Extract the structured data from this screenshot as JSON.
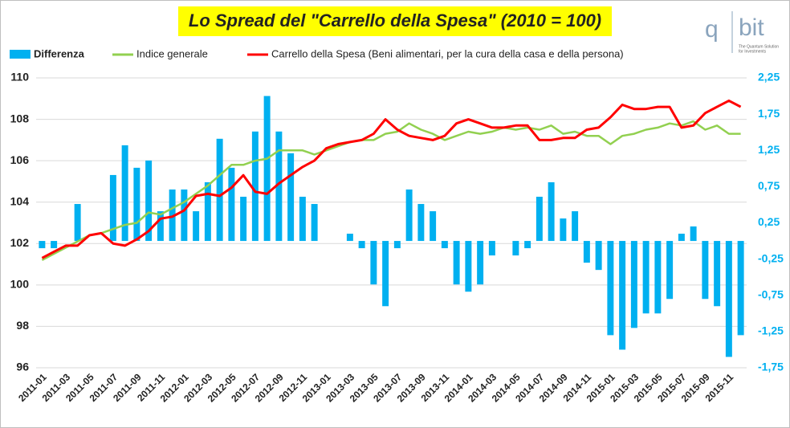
{
  "chart_data": {
    "type": "combo",
    "title": "Lo Spread del \"Carrello della Spesa\" (2010 = 100)",
    "annotations": [
      "q",
      "bit",
      "The Quantum Solution",
      "for Investments"
    ],
    "categories": [
      "2011-01",
      null,
      "2011-03",
      null,
      "2011-05",
      null,
      "2011-07",
      null,
      "2011-09",
      null,
      "2011-11",
      null,
      "2012-01",
      null,
      "2012-03",
      null,
      "2012-05",
      null,
      "2012-07",
      null,
      "2012-09",
      null,
      "2012-11",
      null,
      "2013-01",
      null,
      "2013-03",
      null,
      "2013-05",
      null,
      "2013-07",
      null,
      "2013-09",
      null,
      "2013-11",
      null,
      "2014-01",
      null,
      "2014-03",
      null,
      "2014-05",
      null,
      "2014-07",
      null,
      "2014-09",
      null,
      "2014-11",
      null,
      "2015-01",
      null,
      "2015-03",
      null,
      "2015-05",
      null,
      "2015-07",
      null,
      "2015-09",
      null,
      "2015-11",
      null
    ],
    "series": [
      {
        "name": "Differenza",
        "type": "bar",
        "axis": "y2",
        "color": "#00b0f0",
        "values": [
          -0.1,
          -0.1,
          0,
          0.51,
          0,
          0,
          0.91,
          1.32,
          1.01,
          1.11,
          0.41,
          0.71,
          0.71,
          0.41,
          0.81,
          1.41,
          1.01,
          0.61,
          1.51,
          2.0,
          1.51,
          1.21,
          0.61,
          0.51,
          0,
          0,
          0.1,
          -0.1,
          -0.6,
          -0.9,
          -0.1,
          0.71,
          0.51,
          0.41,
          -0.1,
          -0.6,
          -0.7,
          -0.6,
          -0.2,
          0,
          -0.2,
          -0.1,
          0.61,
          0.81,
          0.31,
          0.41,
          -0.3,
          -0.4,
          -1.3,
          -1.5,
          -1.2,
          -1.0,
          -1.0,
          -0.8,
          0.1,
          0.2,
          -0.8,
          -0.9,
          -1.6,
          -1.3
        ]
      },
      {
        "name": "Indice generale",
        "type": "line",
        "color": "#92d050",
        "values": [
          101.2,
          101.5,
          101.8,
          102.1,
          102.4,
          102.5,
          102.7,
          102.9,
          103.0,
          103.5,
          103.4,
          103.7,
          104.0,
          104.4,
          104.8,
          105.3,
          105.8,
          105.8,
          106.0,
          106.1,
          106.5,
          106.5,
          106.5,
          106.3,
          106.5,
          106.7,
          106.9,
          107.0,
          107.0,
          107.3,
          107.4,
          107.8,
          107.5,
          107.3,
          107.0,
          107.2,
          107.4,
          107.3,
          107.4,
          107.6,
          107.5,
          107.6,
          107.5,
          107.7,
          107.3,
          107.4,
          107.2,
          107.2,
          106.8,
          107.2,
          107.3,
          107.5,
          107.6,
          107.8,
          107.7,
          107.9,
          107.5,
          107.7,
          107.3,
          107.3
        ]
      },
      {
        "name": "Carrello della Spesa (Beni alimentari, per la cura della casa e della persona)",
        "type": "line",
        "color": "#ff0000",
        "values": [
          101.3,
          101.6,
          101.9,
          101.9,
          102.4,
          102.5,
          102.0,
          101.9,
          102.2,
          102.6,
          103.2,
          103.3,
          103.6,
          104.3,
          104.4,
          104.3,
          104.7,
          105.3,
          104.5,
          104.4,
          104.9,
          105.3,
          105.7,
          106.0,
          106.6,
          106.8,
          106.9,
          107.0,
          107.3,
          108.0,
          107.5,
          107.2,
          107.1,
          107.0,
          107.2,
          107.8,
          108.0,
          107.8,
          107.6,
          107.6,
          107.7,
          107.7,
          107.0,
          107.0,
          107.1,
          107.1,
          107.5,
          107.6,
          108.1,
          108.7,
          108.5,
          108.5,
          108.6,
          108.6,
          107.6,
          107.7,
          108.3,
          108.6,
          108.9,
          108.6
        ]
      }
    ],
    "ylim": [
      96,
      110
    ],
    "yticks": [
      96,
      98,
      100,
      102,
      104,
      106,
      108,
      110
    ],
    "y2lim": [
      -1.75,
      2.25
    ],
    "y2ticks": [
      {
        "value": -1.75,
        "label": "-1,75"
      },
      {
        "value": -1.25,
        "label": "-1,25"
      },
      {
        "value": -0.75,
        "label": "-0,75"
      },
      {
        "value": -0.25,
        "label": "-0,25"
      },
      {
        "value": 0.25,
        "label": "0,25"
      },
      {
        "value": 0.75,
        "label": "0,75"
      },
      {
        "value": 1.25,
        "label": "1,25"
      },
      {
        "value": 1.75,
        "label": "1,75"
      },
      {
        "value": 2.25,
        "label": "2,25"
      }
    ],
    "grid": true
  }
}
